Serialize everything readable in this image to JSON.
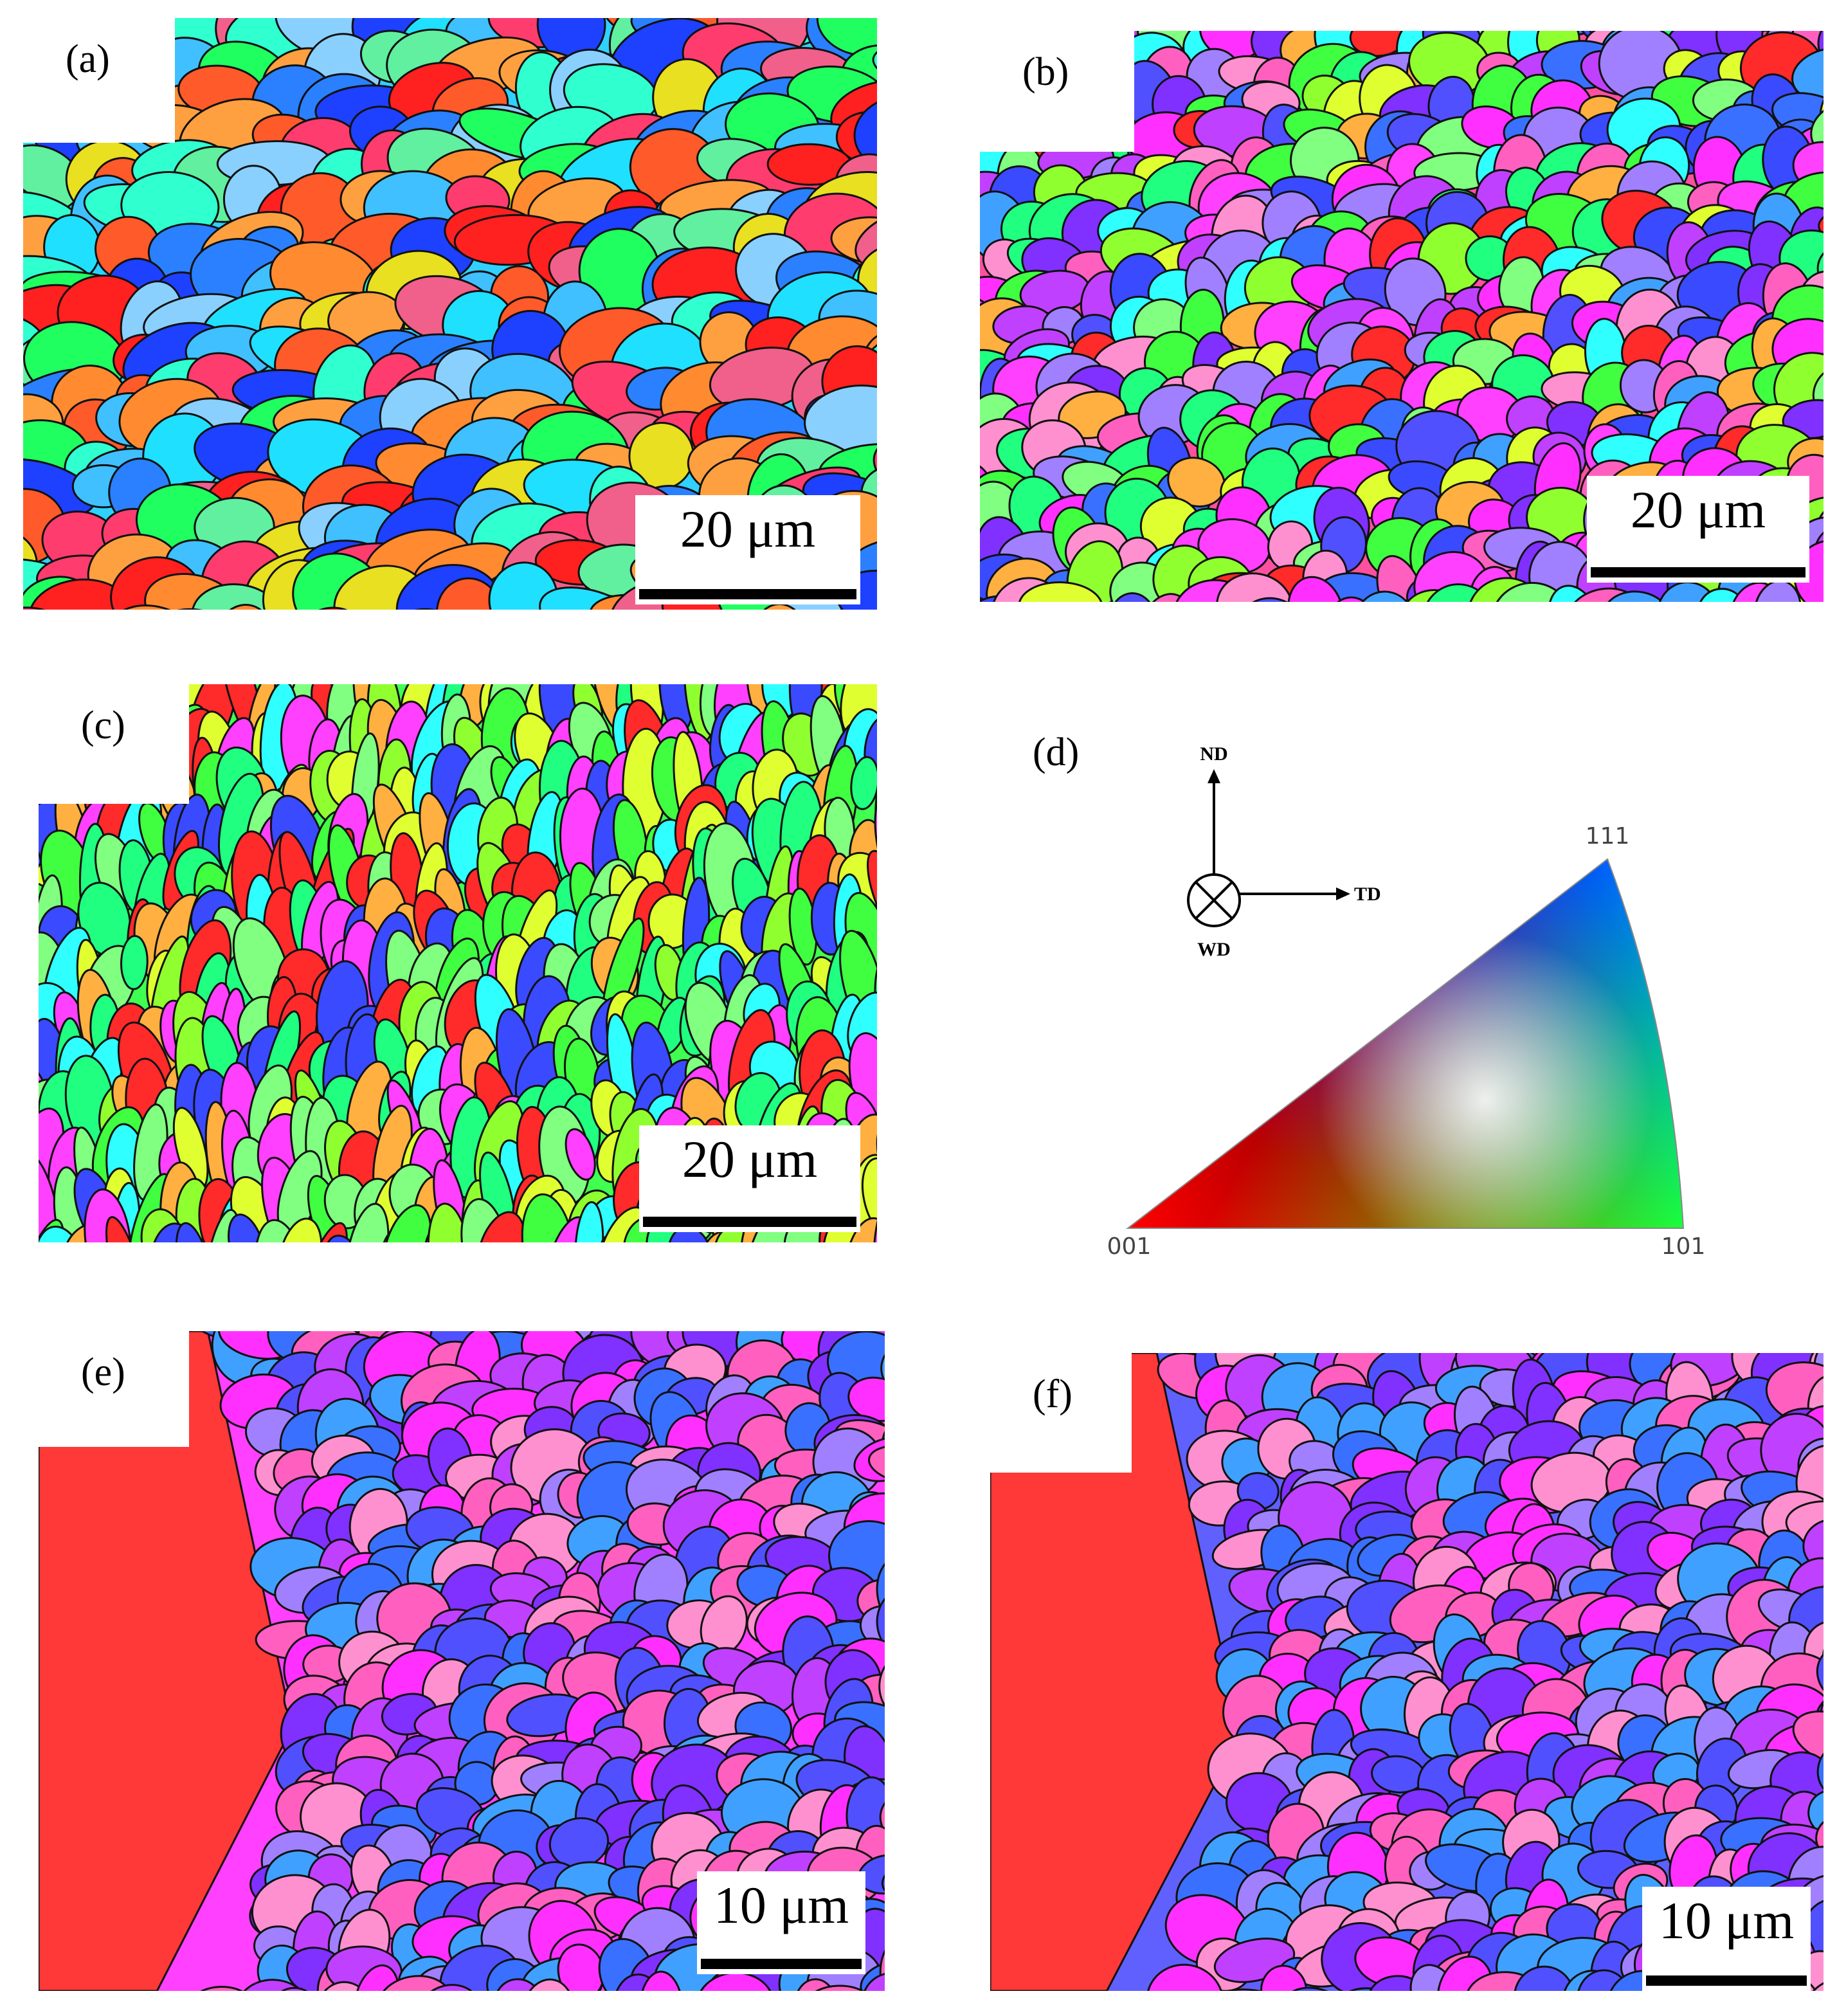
{
  "panels": [
    {
      "label": "(a)",
      "scale_bar": "20 μm"
    },
    {
      "label": "(b)",
      "scale_bar": "20 μm"
    },
    {
      "label": "(c)",
      "scale_bar": "20 μm"
    },
    {
      "label": "(e)",
      "scale_bar": "10 μm"
    },
    {
      "label": "(f)",
      "scale_bar": "10 μm"
    }
  ],
  "legend": {
    "label": "(d)",
    "poles": [
      "001",
      "101",
      "111"
    ],
    "axes": [
      "ND",
      "TD",
      "WD"
    ]
  }
}
